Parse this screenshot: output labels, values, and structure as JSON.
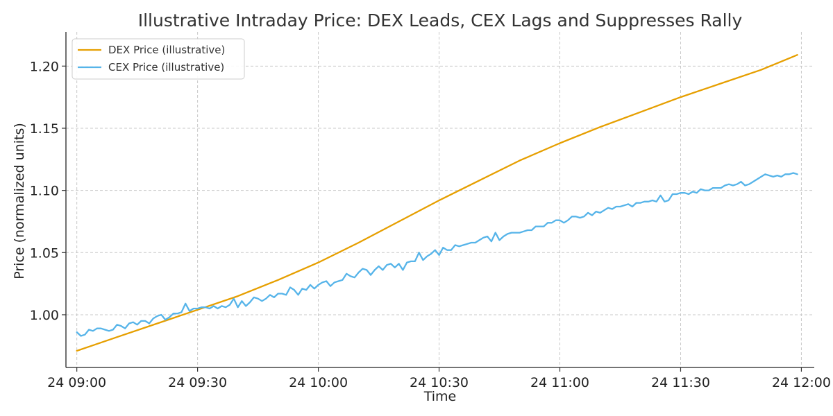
{
  "chart_data": {
    "type": "line",
    "title": "Illustrative Intraday Price: DEX Leads, CEX Lags and Suppresses Rally",
    "xlabel": "Time",
    "ylabel": "Price (normalized units)",
    "x_range_minutes": [
      -2.7,
      183.2
    ],
    "ylim": [
      0.9576,
      1.2275
    ],
    "x_ticks": [
      {
        "minute": 0,
        "label": "24 09:00"
      },
      {
        "minute": 30,
        "label": "24 09:30"
      },
      {
        "minute": 60,
        "label": "24 10:00"
      },
      {
        "minute": 90,
        "label": "24 10:30"
      },
      {
        "minute": 120,
        "label": "24 11:00"
      },
      {
        "minute": 150,
        "label": "24 11:30"
      },
      {
        "minute": 180,
        "label": "24 12:00"
      }
    ],
    "y_ticks": [
      {
        "value": 1.0,
        "label": "1.00"
      },
      {
        "value": 1.05,
        "label": "1.05"
      },
      {
        "value": 1.1,
        "label": "1.10"
      },
      {
        "value": 1.15,
        "label": "1.15"
      },
      {
        "value": 1.2,
        "label": "1.20"
      }
    ],
    "grid": true,
    "legend_position": "top-left",
    "series": [
      {
        "name": "DEX Price (illustrative)",
        "color": "#E69F00",
        "minutes": [
          0,
          10,
          20,
          30,
          40,
          50,
          60,
          70,
          80,
          90,
          100,
          110,
          120,
          130,
          140,
          150,
          160,
          170,
          179
        ],
        "values": [
          0.971,
          0.982,
          0.993,
          1.004,
          1.015,
          1.028,
          1.042,
          1.058,
          1.075,
          1.092,
          1.108,
          1.124,
          1.138,
          1.151,
          1.163,
          1.175,
          1.186,
          1.197,
          1.209
        ]
      },
      {
        "name": "CEX Price (illustrative)",
        "color": "#56B4E9",
        "minutes": [
          0,
          1,
          2,
          3,
          4,
          5,
          6,
          7,
          8,
          9,
          10,
          11,
          12,
          13,
          14,
          15,
          16,
          17,
          18,
          19,
          20,
          21,
          22,
          23,
          24,
          25,
          26,
          27,
          28,
          29,
          30,
          31,
          32,
          33,
          34,
          35,
          36,
          37,
          38,
          39,
          40,
          41,
          42,
          43,
          44,
          45,
          46,
          47,
          48,
          49,
          50,
          51,
          52,
          53,
          54,
          55,
          56,
          57,
          58,
          59,
          60,
          61,
          62,
          63,
          64,
          65,
          66,
          67,
          68,
          69,
          70,
          71,
          72,
          73,
          74,
          75,
          76,
          77,
          78,
          79,
          80,
          81,
          82,
          83,
          84,
          85,
          86,
          87,
          88,
          89,
          90,
          91,
          92,
          93,
          94,
          95,
          96,
          97,
          98,
          99,
          100,
          101,
          102,
          103,
          104,
          105,
          106,
          107,
          108,
          109,
          110,
          111,
          112,
          113,
          114,
          115,
          116,
          117,
          118,
          119,
          120,
          121,
          122,
          123,
          124,
          125,
          126,
          127,
          128,
          129,
          130,
          131,
          132,
          133,
          134,
          135,
          136,
          137,
          138,
          139,
          140,
          141,
          142,
          143,
          144,
          145,
          146,
          147,
          148,
          149,
          150,
          151,
          152,
          153,
          154,
          155,
          156,
          157,
          158,
          159,
          160,
          161,
          162,
          163,
          164,
          165,
          166,
          167,
          168,
          169,
          170,
          171,
          172,
          173,
          174,
          175,
          176,
          177,
          178,
          179
        ],
        "values": [
          0.986,
          0.983,
          0.984,
          0.988,
          0.987,
          0.989,
          0.989,
          0.988,
          0.987,
          0.988,
          0.992,
          0.991,
          0.989,
          0.993,
          0.994,
          0.992,
          0.995,
          0.995,
          0.993,
          0.997,
          0.999,
          1.0,
          0.996,
          0.998,
          1.001,
          1.001,
          1.002,
          1.009,
          1.003,
          1.005,
          1.005,
          1.006,
          1.006,
          1.005,
          1.007,
          1.005,
          1.007,
          1.006,
          1.008,
          1.013,
          1.006,
          1.011,
          1.007,
          1.01,
          1.014,
          1.013,
          1.011,
          1.013,
          1.016,
          1.014,
          1.017,
          1.017,
          1.016,
          1.022,
          1.02,
          1.016,
          1.021,
          1.02,
          1.024,
          1.021,
          1.024,
          1.026,
          1.027,
          1.023,
          1.026,
          1.027,
          1.028,
          1.033,
          1.031,
          1.03,
          1.034,
          1.037,
          1.036,
          1.032,
          1.036,
          1.039,
          1.036,
          1.04,
          1.041,
          1.038,
          1.041,
          1.036,
          1.042,
          1.043,
          1.043,
          1.05,
          1.044,
          1.047,
          1.049,
          1.052,
          1.048,
          1.054,
          1.052,
          1.052,
          1.056,
          1.055,
          1.056,
          1.057,
          1.058,
          1.058,
          1.06,
          1.062,
          1.063,
          1.059,
          1.066,
          1.06,
          1.063,
          1.065,
          1.066,
          1.066,
          1.066,
          1.067,
          1.068,
          1.068,
          1.071,
          1.071,
          1.071,
          1.074,
          1.074,
          1.076,
          1.076,
          1.074,
          1.076,
          1.079,
          1.079,
          1.078,
          1.079,
          1.082,
          1.08,
          1.083,
          1.082,
          1.084,
          1.086,
          1.085,
          1.087,
          1.087,
          1.088,
          1.089,
          1.087,
          1.09,
          1.09,
          1.091,
          1.091,
          1.092,
          1.091,
          1.096,
          1.091,
          1.092,
          1.097,
          1.097,
          1.098,
          1.098,
          1.097,
          1.099,
          1.098,
          1.101,
          1.1,
          1.1,
          1.102,
          1.102,
          1.102,
          1.104,
          1.105,
          1.104,
          1.105,
          1.107,
          1.104,
          1.105,
          1.107,
          1.109,
          1.111,
          1.113,
          1.112,
          1.111,
          1.112,
          1.111,
          1.113,
          1.113,
          1.114,
          1.113
        ]
      }
    ]
  }
}
